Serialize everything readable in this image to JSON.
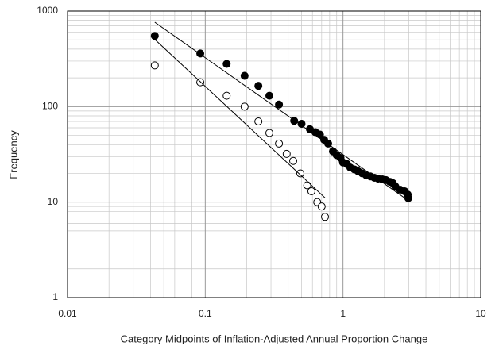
{
  "chart_data": {
    "type": "scatter",
    "x_label": "Category Midpoints of Inflation-Adjusted Annual Proportion Change",
    "y_label": "Frequency",
    "xscale": "log",
    "yscale": "log",
    "grid": true,
    "xlim": [
      0.01,
      10
    ],
    "ylim": [
      1,
      1000
    ],
    "xticks": [
      0.01,
      0.1,
      1,
      10
    ],
    "yticks": [
      1,
      10,
      100,
      1000
    ],
    "series": [
      {
        "marker": "filled",
        "color": "#000000",
        "x": [
          0.043,
          0.092,
          0.143,
          0.193,
          0.243,
          0.292,
          0.343,
          0.442,
          0.5,
          0.575,
          0.63,
          0.68,
          0.73,
          0.78,
          0.845,
          0.9,
          0.96,
          1.0,
          1.07,
          1.13,
          1.21,
          1.29,
          1.38,
          1.48,
          1.58,
          1.69,
          1.8,
          1.93,
          2.05,
          2.19,
          2.3,
          2.4,
          2.6,
          2.8,
          2.95,
          2.98
        ],
        "values": [
          550,
          360,
          280,
          210,
          165,
          130,
          105,
          71,
          66,
          58,
          54,
          51,
          45,
          41,
          34,
          31,
          29,
          26,
          25,
          23,
          22,
          21,
          20,
          19,
          18.6,
          18,
          17.6,
          17.3,
          17,
          16.3,
          15.8,
          14.6,
          13.5,
          13,
          12,
          11
        ]
      },
      {
        "marker": "open",
        "color": "#000000",
        "x": [
          0.043,
          0.092,
          0.143,
          0.193,
          0.243,
          0.292,
          0.343,
          0.39,
          0.435,
          0.49,
          0.55,
          0.59,
          0.65,
          0.7,
          0.74
        ],
        "values": [
          270,
          180,
          130,
          100,
          70,
          53,
          41,
          32,
          27,
          20,
          15,
          13,
          10,
          9,
          7
        ]
      },
      {
        "marker": "line",
        "color": "#000000",
        "x": [
          0.043,
          2.95
        ],
        "values": [
          765,
          10.5
        ]
      },
      {
        "marker": "line",
        "color": "#000000",
        "x": [
          0.042,
          0.74
        ],
        "values": [
          522,
          11.1
        ]
      }
    ]
  }
}
